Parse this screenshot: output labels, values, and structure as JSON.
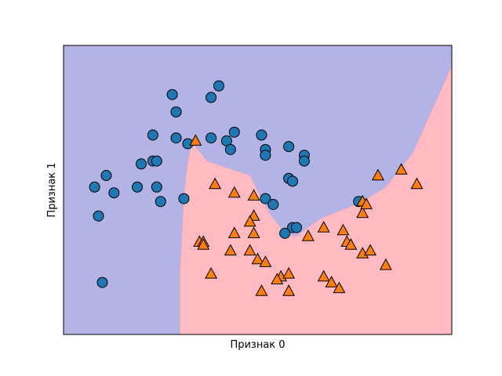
{
  "chart_data": {
    "type": "scatter",
    "xlabel": "Признак 0",
    "ylabel": "Признак 1",
    "xlim": [
      0,
      10
    ],
    "ylim": [
      0,
      10
    ],
    "ticks_visible": false,
    "grid": false,
    "legend": "none",
    "colors": {
      "region_class0": "#b3b3e6",
      "region_class1": "#ffbbc1",
      "class0_marker": "#1f77b4",
      "class1_marker": "#ff7f0e",
      "marker_edge": "#000000"
    },
    "decision_boundary": [
      [
        3.0,
        0.0
      ],
      [
        3.0,
        2.2
      ],
      [
        3.1,
        4.8
      ],
      [
        3.2,
        6.0
      ],
      [
        3.3,
        6.6
      ],
      [
        3.4,
        6.5
      ],
      [
        3.7,
        6.0
      ],
      [
        4.8,
        5.5
      ],
      [
        5.3,
        4.2
      ],
      [
        5.7,
        3.5
      ],
      [
        6.0,
        3.4
      ],
      [
        6.6,
        4.0
      ],
      [
        7.7,
        4.6
      ],
      [
        8.3,
        5.1
      ],
      [
        9.0,
        6.3
      ],
      [
        10.0,
        9.3
      ]
    ],
    "series": [
      {
        "marker": "circle",
        "points": [
          [
            2.8,
            8.3
          ],
          [
            4.0,
            8.6
          ],
          [
            3.8,
            8.2
          ],
          [
            2.9,
            7.7
          ],
          [
            4.4,
            7.0
          ],
          [
            2.3,
            6.9
          ],
          [
            2.9,
            6.8
          ],
          [
            3.2,
            6.6
          ],
          [
            3.8,
            6.8
          ],
          [
            5.1,
            6.9
          ],
          [
            4.2,
            6.7
          ],
          [
            5.2,
            6.4
          ],
          [
            5.8,
            6.5
          ],
          [
            6.2,
            6.2
          ],
          [
            6.2,
            6.0
          ],
          [
            4.3,
            6.4
          ],
          [
            5.2,
            6.2
          ],
          [
            2.3,
            6.0
          ],
          [
            2.4,
            6.0
          ],
          [
            2.0,
            5.9
          ],
          [
            1.1,
            5.5
          ],
          [
            0.8,
            5.1
          ],
          [
            1.3,
            4.9
          ],
          [
            1.9,
            5.1
          ],
          [
            2.4,
            5.1
          ],
          [
            2.5,
            4.6
          ],
          [
            3.1,
            4.7
          ],
          [
            5.2,
            4.7
          ],
          [
            5.4,
            4.5
          ],
          [
            5.8,
            5.4
          ],
          [
            5.9,
            5.3
          ],
          [
            0.9,
            4.1
          ],
          [
            5.9,
            3.7
          ],
          [
            6.0,
            3.7
          ],
          [
            5.7,
            3.5
          ],
          [
            7.6,
            4.6
          ],
          [
            1.0,
            1.8
          ]
        ]
      },
      {
        "marker": "triangle",
        "points": [
          [
            3.4,
            6.7
          ],
          [
            3.9,
            5.2
          ],
          [
            4.4,
            4.9
          ],
          [
            4.9,
            4.8
          ],
          [
            4.9,
            4.1
          ],
          [
            4.8,
            3.9
          ],
          [
            4.4,
            3.5
          ],
          [
            4.9,
            3.5
          ],
          [
            3.5,
            3.2
          ],
          [
            3.6,
            3.2
          ],
          [
            3.6,
            3.1
          ],
          [
            4.3,
            2.9
          ],
          [
            4.8,
            2.9
          ],
          [
            5.0,
            2.6
          ],
          [
            5.2,
            2.5
          ],
          [
            3.8,
            2.1
          ],
          [
            5.6,
            2.0
          ],
          [
            5.5,
            1.9
          ],
          [
            5.8,
            2.1
          ],
          [
            5.1,
            1.5
          ],
          [
            5.8,
            1.5
          ],
          [
            6.3,
            3.4
          ],
          [
            6.7,
            3.7
          ],
          [
            7.2,
            3.6
          ],
          [
            7.3,
            3.2
          ],
          [
            7.4,
            3.1
          ],
          [
            7.7,
            4.2
          ],
          [
            7.7,
            4.6
          ],
          [
            7.8,
            4.5
          ],
          [
            8.1,
            5.5
          ],
          [
            8.7,
            5.7
          ],
          [
            9.1,
            5.2
          ],
          [
            7.7,
            2.8
          ],
          [
            7.9,
            2.9
          ],
          [
            8.3,
            2.4
          ],
          [
            6.7,
            2.0
          ],
          [
            6.9,
            1.8
          ],
          [
            7.1,
            1.6
          ]
        ]
      }
    ]
  }
}
